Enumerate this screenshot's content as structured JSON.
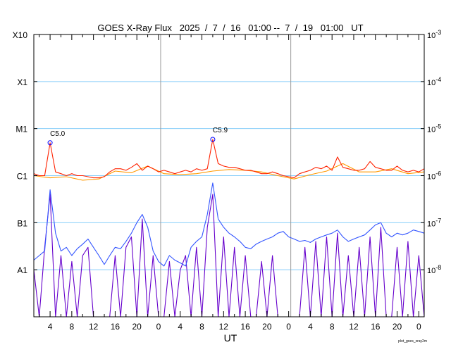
{
  "chart_data": {
    "type": "line",
    "title": "GOES X-Ray Flux   2025  /  7  /  16   01:00 --  7  /  19   01:00   UT",
    "xlabel": "UT",
    "footer": "plot_goes_xray2m",
    "x_unit": "hours since 2025-07-16 01:00 UT",
    "xlim": [
      0,
      72
    ],
    "ylim": [
      1e-09,
      0.001
    ],
    "yscale": "log",
    "x_tick_hours": [
      3,
      7,
      11,
      15,
      19,
      23,
      27,
      31,
      35,
      39,
      43,
      47,
      51,
      55,
      59,
      63,
      67,
      71
    ],
    "x_tick_labels": [
      "4",
      "8",
      "12",
      "16",
      "20",
      "0",
      "4",
      "8",
      "12",
      "16",
      "20",
      "0",
      "4",
      "8",
      "12",
      "16",
      "20",
      "0"
    ],
    "day_boundaries_hours": [
      23,
      47
    ],
    "left_axis": [
      {
        "label": "X10",
        "value": 0.001
      },
      {
        "label": "X1",
        "value": 0.0001
      },
      {
        "label": "M1",
        "value": 1e-05
      },
      {
        "label": "C1",
        "value": 1e-06
      },
      {
        "label": "B1",
        "value": 1e-07
      },
      {
        "label": "A1",
        "value": 1e-08
      }
    ],
    "right_axis": [
      {
        "base": "10",
        "exp": "-3",
        "value": 0.001
      },
      {
        "base": "10",
        "exp": "-4",
        "value": 0.0001
      },
      {
        "base": "10",
        "exp": "-5",
        "value": 1e-05
      },
      {
        "base": "10",
        "exp": "-6",
        "value": 1e-06
      },
      {
        "base": "10",
        "exp": "-7",
        "value": 1e-07
      },
      {
        "base": "10",
        "exp": "-8",
        "value": 1e-08
      }
    ],
    "grid": {
      "horizontal": true,
      "color": "#87cefa"
    },
    "series": [
      {
        "name": "long-secondary",
        "color": "#ff9900",
        "step_hours": 3,
        "values": [
          1e-06,
          9e-07,
          9.5e-07,
          8e-07,
          8.5e-07,
          1.25e-06,
          1.15e-06,
          1.6e-06,
          1.1e-06,
          1.05e-06,
          1.1e-06,
          1.25e-06,
          1.35e-06,
          1.3e-06,
          1.2e-06,
          1e-06,
          8.5e-07,
          1.05e-06,
          1.25e-06,
          1.8e-06,
          1.2e-06,
          1.2e-06,
          1.4e-06,
          1.1e-06,
          1.2e-06
        ]
      },
      {
        "name": "long-primary",
        "color": "#ff2200",
        "step_hours": 1,
        "values": [
          1.1e-06,
          1e-06,
          1e-06,
          5e-06,
          1.2e-06,
          1.1e-06,
          1e-06,
          1.1e-06,
          1e-06,
          1e-06,
          9.5e-07,
          9e-07,
          9e-07,
          9.5e-07,
          1.2e-06,
          1.4e-06,
          1.4e-06,
          1.3e-06,
          1.5e-06,
          1.8e-06,
          1.3e-06,
          1.6e-06,
          1.4e-06,
          1.2e-06,
          1.3e-06,
          1.2e-06,
          1.1e-06,
          1.2e-06,
          1.3e-06,
          1.2e-06,
          1.4e-06,
          1.3e-06,
          1.4e-06,
          5.9e-06,
          1.8e-06,
          1.6e-06,
          1.5e-06,
          1.5e-06,
          1.4e-06,
          1.3e-06,
          1.3e-06,
          1.2e-06,
          1.1e-06,
          1.1e-06,
          1.2e-06,
          1.1e-06,
          1e-06,
          9.5e-07,
          9e-07,
          1.1e-06,
          1.2e-06,
          1.3e-06,
          1.5e-06,
          1.4e-06,
          1.6e-06,
          1.3e-06,
          2.5e-06,
          1.5e-06,
          1.4e-06,
          1.3e-06,
          1.3e-06,
          1.4e-06,
          2e-06,
          1.5e-06,
          1.4e-06,
          1.3e-06,
          1.3e-06,
          1.6e-06,
          1.3e-06,
          1.2e-06,
          1.3e-06,
          1.2e-06,
          1.4e-06
        ]
      },
      {
        "name": "short-secondary",
        "color": "#6600cc",
        "step_hours": 1,
        "values": [
          1e-08,
          1e-09,
          3e-08,
          4e-07,
          1e-09,
          2e-08,
          1e-09,
          1.5e-08,
          1e-09,
          2e-08,
          3e-08,
          1e-09,
          1e-09,
          1e-09,
          1e-09,
          2e-08,
          1e-09,
          3e-08,
          5e-08,
          1e-09,
          1.2e-07,
          1e-09,
          2e-08,
          1e-09,
          1e-09,
          1.5e-08,
          1e-09,
          1e-08,
          2e-08,
          1e-09,
          3e-08,
          1e-09,
          8e-08,
          4e-07,
          1e-09,
          5e-08,
          1e-09,
          3e-08,
          1e-09,
          2e-08,
          1e-09,
          1e-09,
          1.5e-08,
          1e-09,
          2e-08,
          1e-09,
          1e-09,
          1e-09,
          1e-09,
          1e-09,
          3e-08,
          1e-09,
          4e-08,
          1e-09,
          5e-08,
          1e-09,
          6e-08,
          1e-09,
          2e-08,
          1e-09,
          3e-08,
          1e-09,
          5e-08,
          1e-09,
          8e-08,
          1e-09,
          1e-09,
          3e-08,
          1e-09,
          4e-08,
          1e-09,
          2e-08,
          1e-09
        ]
      },
      {
        "name": "short-primary",
        "color": "#3355ff",
        "step_hours": 1,
        "values": [
          1.6e-08,
          2e-08,
          2.5e-08,
          5e-07,
          6e-08,
          2.5e-08,
          3e-08,
          2e-08,
          2.8e-08,
          3.5e-08,
          4.5e-08,
          3e-08,
          2e-08,
          1.3e-08,
          2e-08,
          3e-08,
          2.8e-08,
          4e-08,
          6e-08,
          1e-07,
          1.5e-07,
          8e-08,
          2.5e-08,
          1.5e-08,
          1.2e-08,
          2e-08,
          1.6e-08,
          1.4e-08,
          1.2e-08,
          3e-08,
          4e-08,
          5e-08,
          1.5e-07,
          7e-07,
          1.2e-07,
          8e-08,
          6e-08,
          5e-08,
          4e-08,
          3e-08,
          2.8e-08,
          3.5e-08,
          4e-08,
          4.5e-08,
          5e-08,
          6e-08,
          6.5e-08,
          5e-08,
          4.5e-08,
          4e-08,
          4.2e-08,
          3.8e-08,
          4.5e-08,
          5e-08,
          5.5e-08,
          6e-08,
          7e-08,
          5e-08,
          4e-08,
          4.5e-08,
          5e-08,
          5.5e-08,
          7e-08,
          9e-08,
          1e-07,
          6e-08,
          5e-08,
          6e-08,
          5.5e-08,
          6e-08,
          7e-08,
          6.5e-08,
          6e-08
        ]
      }
    ],
    "annotations": [
      {
        "label": "C5.0",
        "hour": 3,
        "value": 5e-06
      },
      {
        "label": "C5.9",
        "hour": 33,
        "value": 5.9e-06
      }
    ]
  }
}
